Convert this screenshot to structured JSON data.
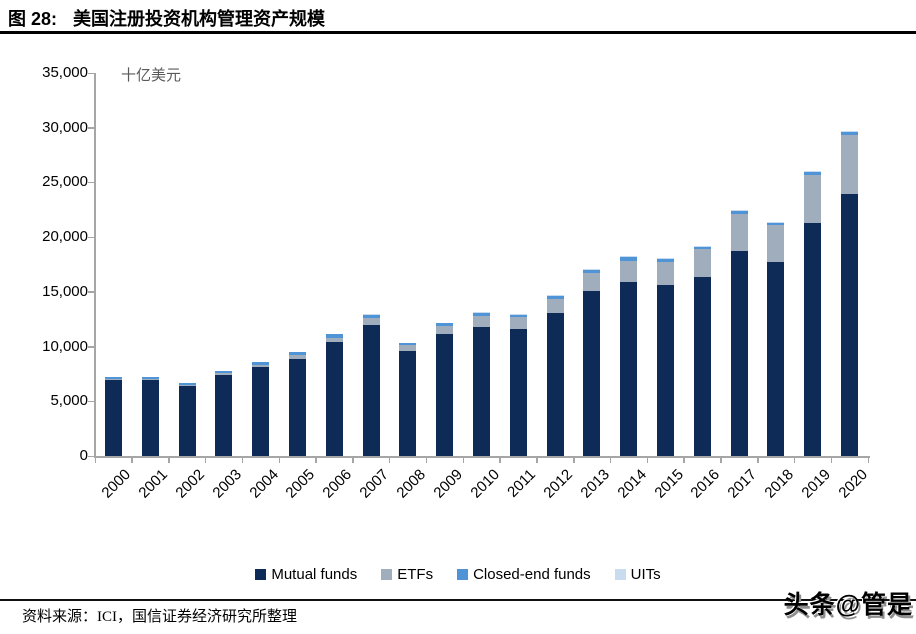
{
  "header": {
    "figure_label": "图 28:",
    "title": "美国注册投资机构管理资产规模"
  },
  "chart_data": {
    "type": "bar",
    "stacked": true,
    "unit_label": "十亿美元",
    "categories": [
      "2000",
      "2001",
      "2002",
      "2003",
      "2004",
      "2005",
      "2006",
      "2007",
      "2008",
      "2009",
      "2010",
      "2011",
      "2012",
      "2013",
      "2014",
      "2015",
      "2016",
      "2017",
      "2018",
      "2019",
      "2020"
    ],
    "series": [
      {
        "name": "Mutual funds",
        "color": "#0E2A57",
        "values": [
          6965,
          6975,
          6383,
          7400,
          8095,
          8890,
          10400,
          12000,
          9600,
          11110,
          11830,
          11630,
          13045,
          15050,
          15875,
          15650,
          16345,
          18745,
          17710,
          21290,
          23895
        ]
      },
      {
        "name": "ETFs",
        "color": "#9FADBD",
        "values": [
          66,
          83,
          102,
          151,
          228,
          301,
          423,
          608,
          531,
          777,
          992,
          1048,
          1337,
          1675,
          1975,
          2100,
          2525,
          3400,
          3370,
          4395,
          5450
        ]
      },
      {
        "name": "Closed-end funds",
        "color": "#4E94D6",
        "values": [
          143,
          141,
          159,
          214,
          253,
          276,
          297,
          312,
          186,
          224,
          241,
          243,
          265,
          279,
          289,
          261,
          262,
          275,
          250,
          278,
          279
        ]
      },
      {
        "name": "UITs",
        "color": "#C9DBEE",
        "values": [
          74,
          49,
          36,
          36,
          37,
          41,
          50,
          53,
          29,
          38,
          51,
          60,
          72,
          87,
          101,
          94,
          85,
          85,
          70,
          79,
          78
        ]
      }
    ],
    "ylim": [
      0,
      35000
    ],
    "ytick_interval": 5000,
    "ytick_labels": [
      "0",
      "5,000",
      "10,000",
      "15,000",
      "20,000",
      "25,000",
      "30,000",
      "35,000"
    ],
    "legend_position": "bottom",
    "grid": false,
    "axis_color": "#A6A6A6"
  },
  "footer": {
    "source": "资料来源：ICI，国信证券经济研究所整理",
    "watermark": "头条@管是"
  }
}
